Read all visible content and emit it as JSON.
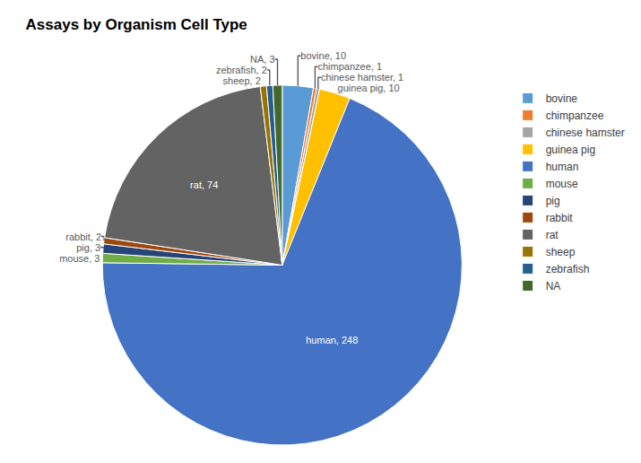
{
  "chart_data": {
    "type": "pie",
    "title": "Assays by Organism Cell Type",
    "categories": [
      "bovine",
      "chimpanzee",
      "chinese hamster",
      "guinea pig",
      "human",
      "mouse",
      "pig",
      "rabbit",
      "rat",
      "sheep",
      "zebrafish",
      "NA"
    ],
    "values": [
      10,
      1,
      1,
      10,
      248,
      3,
      3,
      2,
      74,
      2,
      2,
      3
    ],
    "value_labels": [
      "bovine, 10",
      "chimpanzee, 1",
      "chinese hamster, 1",
      "guinea pig, 10",
      "human, 248",
      "mouse, 3",
      "pig, 3",
      "rabbit, 2",
      "rat, 74",
      "sheep, 2",
      "zebrafish, 2",
      "NA, 3"
    ],
    "colors": [
      "#5B9BD5",
      "#ED7D31",
      "#A5A5A5",
      "#FFC000",
      "#4472C4",
      "#70AD47",
      "#264478",
      "#9E480E",
      "#636363",
      "#997300",
      "#255E91",
      "#43682B"
    ],
    "data_labels": true,
    "legend": "right"
  }
}
